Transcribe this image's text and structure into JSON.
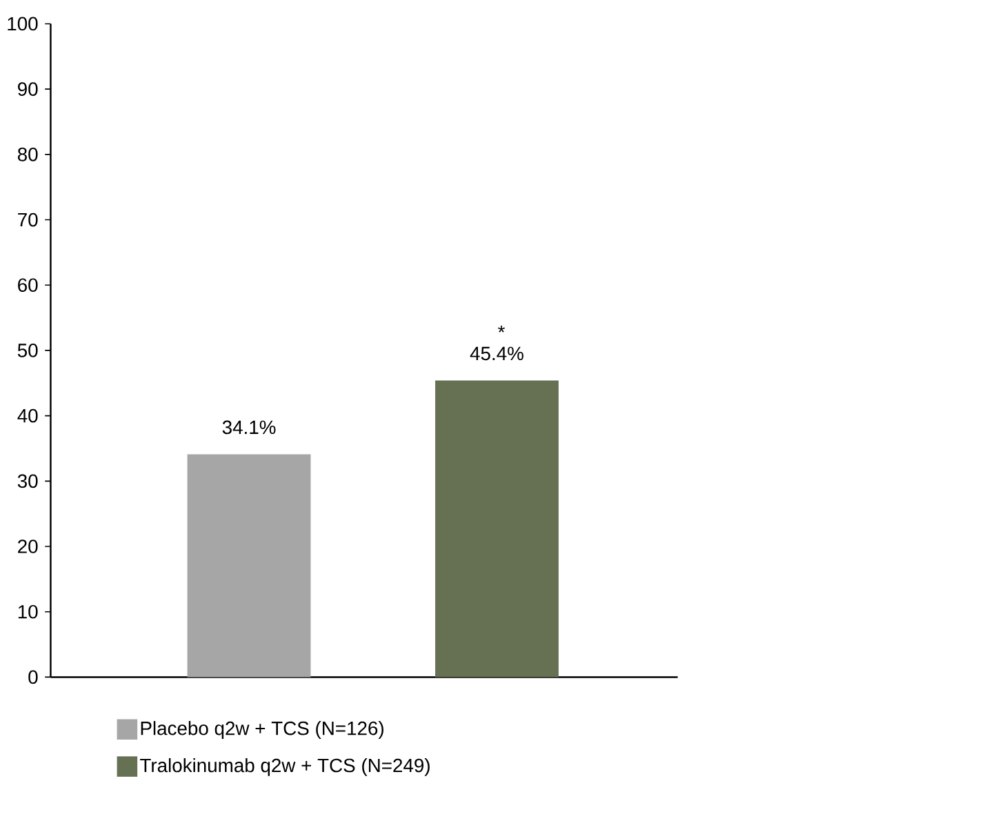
{
  "chart_data": {
    "type": "bar",
    "categories": [
      null
    ],
    "series": [
      {
        "name": "Placebo q2w + TCS (N=126)",
        "color": "#a6a6a6",
        "values": [
          34.1
        ],
        "value_labels": [
          "34.1%"
        ]
      },
      {
        "name": "Tralokinumab q2w + TCS (N=249)",
        "color": "#667153",
        "values": [
          45.4
        ],
        "value_labels": [
          "45.4%"
        ]
      }
    ],
    "ylim": [
      0,
      100
    ],
    "yticks": [
      0,
      10,
      20,
      30,
      40,
      50,
      60,
      70,
      80,
      90,
      100
    ],
    "annotations": [
      "*"
    ],
    "legend": "bottom",
    "grid": false
  }
}
